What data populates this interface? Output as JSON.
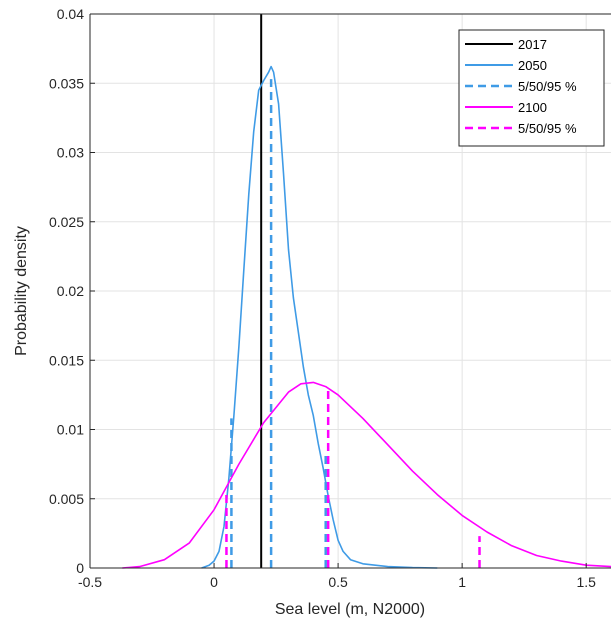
{
  "chart_data": {
    "type": "line",
    "xlabel": "Sea level (m, N2000)",
    "ylabel": "Probability density",
    "xlim": [
      -0.5,
      1.6
    ],
    "ylim": [
      0,
      0.04
    ],
    "xticks": [
      -0.5,
      0,
      0.5,
      1,
      1.5
    ],
    "xtick_labels": [
      "-0.5",
      "0",
      "0.5",
      "1",
      "1.5"
    ],
    "yticks": [
      0,
      0.005,
      0.01,
      0.015,
      0.02,
      0.025,
      0.03,
      0.035,
      0.04
    ],
    "ytick_labels": [
      "0",
      "0.005",
      "0.01",
      "0.015",
      "0.02",
      "0.025",
      "0.03",
      "0.035",
      "0.04"
    ],
    "grid": true,
    "legend_position": "top-right",
    "legend": [
      "2017",
      "2050",
      "5/50/95 %",
      "2100",
      "5/50/95 %"
    ],
    "colors": {
      "y2017": "#000000",
      "y2050": "#3f9be6",
      "y2100": "#ff00ff"
    },
    "series": [
      {
        "name": "2017",
        "style": "vertical-line",
        "x": 0.19
      },
      {
        "name": "2050",
        "style": "solid",
        "x": [
          -0.05,
          -0.02,
          0.0,
          0.02,
          0.04,
          0.06,
          0.08,
          0.1,
          0.12,
          0.14,
          0.16,
          0.18,
          0.2,
          0.22,
          0.23,
          0.24,
          0.26,
          0.28,
          0.3,
          0.32,
          0.34,
          0.36,
          0.38,
          0.4,
          0.42,
          0.44,
          0.46,
          0.48,
          0.5,
          0.52,
          0.55,
          0.6,
          0.7,
          0.8,
          0.9
        ],
        "y": [
          0,
          0.0002,
          0.0005,
          0.0012,
          0.003,
          0.0065,
          0.011,
          0.016,
          0.0215,
          0.027,
          0.0315,
          0.0345,
          0.0352,
          0.0358,
          0.0362,
          0.0358,
          0.0335,
          0.0285,
          0.023,
          0.0195,
          0.017,
          0.0145,
          0.0125,
          0.011,
          0.009,
          0.0072,
          0.0052,
          0.0035,
          0.002,
          0.0012,
          0.0006,
          0.0003,
          0.0001,
          3e-05,
          0
        ]
      },
      {
        "name": "5/50/95 %",
        "style": "dashed-markers",
        "x": [
          0.07,
          0.23,
          0.45
        ],
        "y": [
          0.0108,
          0.0353,
          0.0082
        ]
      },
      {
        "name": "2100",
        "style": "solid",
        "x": [
          -0.37,
          -0.3,
          -0.2,
          -0.1,
          0.0,
          0.1,
          0.2,
          0.3,
          0.35,
          0.4,
          0.45,
          0.5,
          0.6,
          0.7,
          0.8,
          0.9,
          1.0,
          1.1,
          1.2,
          1.3,
          1.4,
          1.5,
          1.6
        ],
        "y": [
          0,
          0.0001,
          0.0006,
          0.0018,
          0.0042,
          0.0075,
          0.0105,
          0.0127,
          0.0133,
          0.0134,
          0.0131,
          0.0125,
          0.0108,
          0.0089,
          0.007,
          0.0053,
          0.0038,
          0.0026,
          0.0016,
          0.0009,
          0.0005,
          0.0002,
          0.0001
        ]
      },
      {
        "name": "5/50/95 %",
        "style": "dashed-markers",
        "x": [
          0.05,
          0.46,
          1.07
        ],
        "y": [
          0.0055,
          0.0131,
          0.0023
        ]
      }
    ]
  }
}
